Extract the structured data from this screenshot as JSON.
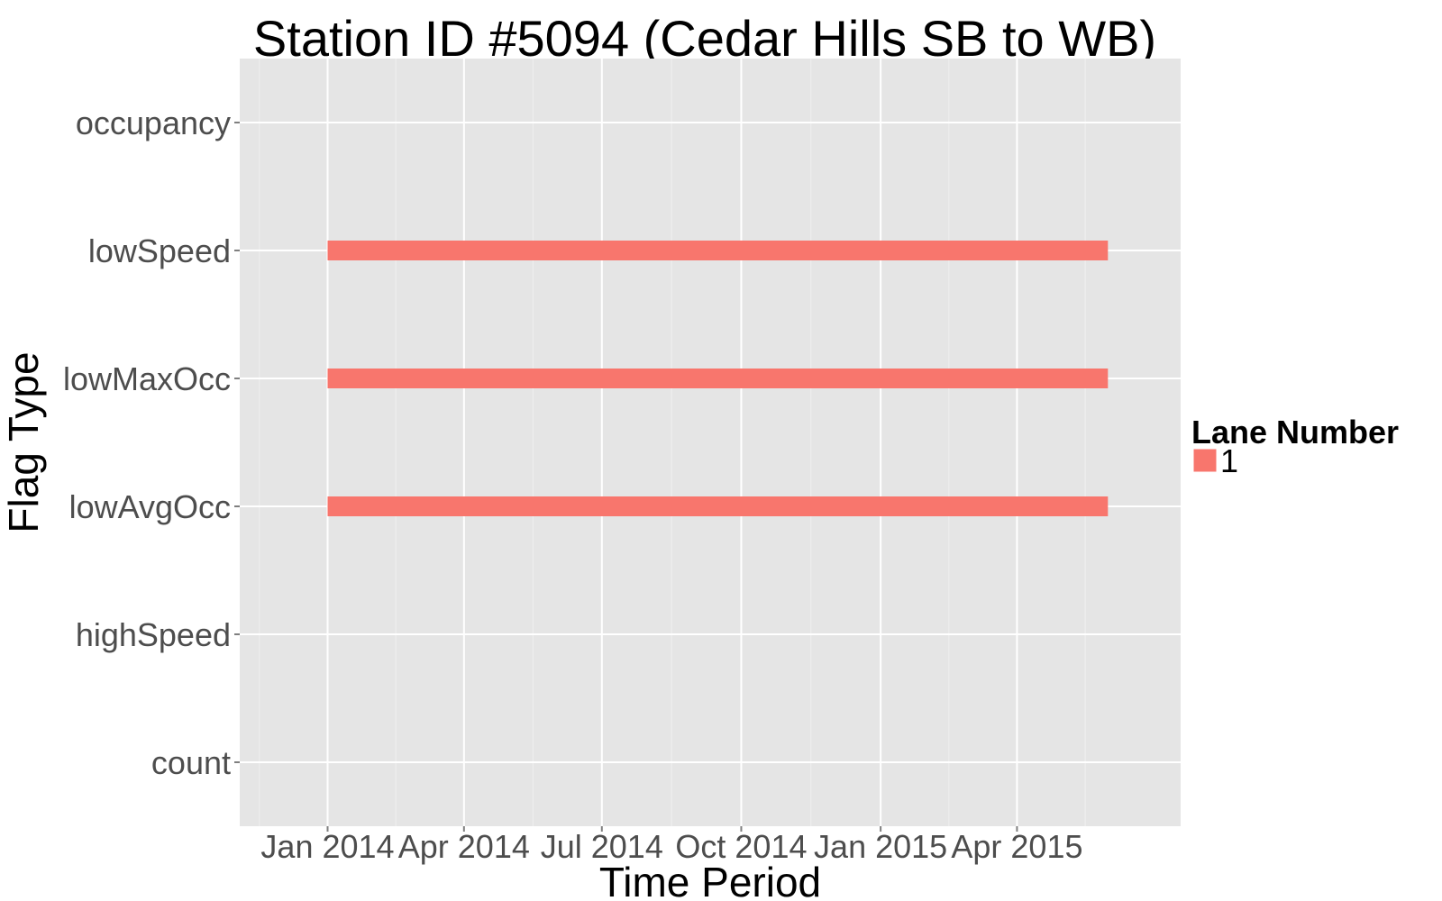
{
  "chart_data": {
    "type": "bar",
    "subtype": "timeline",
    "title": "Station ID #5094 (Cedar Hills SB to WB)",
    "xlabel": "Time Period",
    "ylabel": "Flag Type",
    "x_type": "date",
    "xlim": [
      "2013-11-04",
      "2015-07-18"
    ],
    "x_ticks": [
      {
        "date": "2014-01-01",
        "label": "Jan 2014"
      },
      {
        "date": "2014-04-01",
        "label": "Apr 2014"
      },
      {
        "date": "2014-07-01",
        "label": "Jul 2014"
      },
      {
        "date": "2014-10-01",
        "label": "Oct 2014"
      },
      {
        "date": "2015-01-01",
        "label": "Jan 2015"
      },
      {
        "date": "2015-04-01",
        "label": "Apr 2015"
      }
    ],
    "categories": [
      "count",
      "highSpeed",
      "lowAvgOcc",
      "lowMaxOcc",
      "lowSpeed",
      "occupancy"
    ],
    "series": [
      {
        "name": "1",
        "color": "#F8766D",
        "segments": [
          {
            "category": "lowSpeed",
            "start": "2014-01-01",
            "end": "2015-05-31"
          },
          {
            "category": "lowMaxOcc",
            "start": "2014-01-01",
            "end": "2015-05-31"
          },
          {
            "category": "lowAvgOcc",
            "start": "2014-01-01",
            "end": "2015-05-31"
          }
        ]
      }
    ],
    "legend": {
      "title": "Lane Number",
      "position": "right"
    },
    "grid": true,
    "panel_background": "#E5E5E5"
  }
}
